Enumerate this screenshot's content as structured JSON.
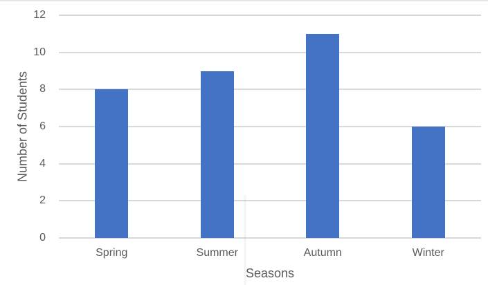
{
  "chart_data": {
    "type": "bar",
    "title": "",
    "categories": [
      "Spring",
      "Summer",
      "Autumn",
      "Winter"
    ],
    "values": [
      8,
      9,
      11,
      6
    ],
    "xlabel": "Seasons",
    "ylabel": "Number of Students",
    "ylim": [
      0,
      12
    ],
    "yticks": [
      0,
      2,
      4,
      6,
      8,
      10,
      12
    ],
    "grid": true,
    "legend_position": "none",
    "colors": {
      "bar": "#4472C4",
      "gridline": "#D9D9D9",
      "axis_line": "#D9D9D9",
      "text": "#595959"
    }
  }
}
